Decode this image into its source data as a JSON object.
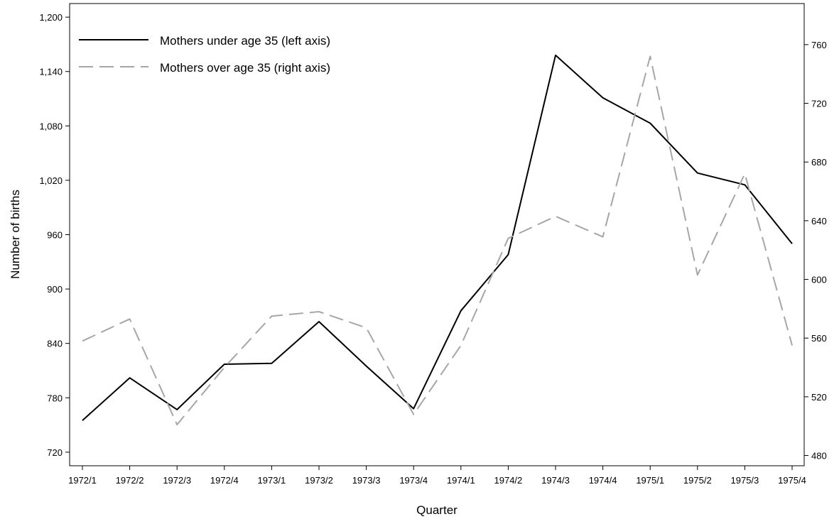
{
  "chart_data": {
    "type": "line",
    "xlabel": "Quarter",
    "ylabel": "Number of births",
    "categories": [
      "1972/1",
      "1972/2",
      "1972/3",
      "1972/4",
      "1973/1",
      "1973/2",
      "1973/3",
      "1973/4",
      "1974/1",
      "1974/2",
      "1974/3",
      "1974/4",
      "1975/1",
      "1975/2",
      "1975/3",
      "1975/4"
    ],
    "left_axis": {
      "range": [
        705,
        1215
      ],
      "ticks": [
        720,
        780,
        840,
        900,
        960,
        1020,
        1080,
        1140,
        1200
      ],
      "tick_labels": [
        "720",
        "780",
        "840",
        "900",
        "960",
        "1,020",
        "1,080",
        "1,140",
        "1,200"
      ]
    },
    "right_axis": {
      "range": [
        473,
        788
      ],
      "ticks": [
        480,
        520,
        560,
        600,
        640,
        680,
        720,
        760
      ],
      "tick_labels": [
        "480",
        "520",
        "560",
        "600",
        "640",
        "680",
        "720",
        "760"
      ]
    },
    "series": [
      {
        "name": "Mothers under age 35 (left axis)",
        "axis": "left",
        "color": "#000000",
        "dash": "solid",
        "values": [
          755,
          802,
          767,
          817,
          818,
          864,
          815,
          768,
          876,
          938,
          1158,
          1111,
          1083,
          1028,
          1015,
          950
        ]
      },
      {
        "name": "Mothers over age 35 (right axis)",
        "axis": "right",
        "color": "#a6a6a6",
        "dash": "dashed",
        "values": [
          558,
          573,
          501,
          540,
          575,
          578,
          567,
          508,
          555,
          628,
          643,
          629,
          752,
          603,
          672,
          555
        ]
      }
    ],
    "legend_position": "top-left",
    "grid": false
  }
}
